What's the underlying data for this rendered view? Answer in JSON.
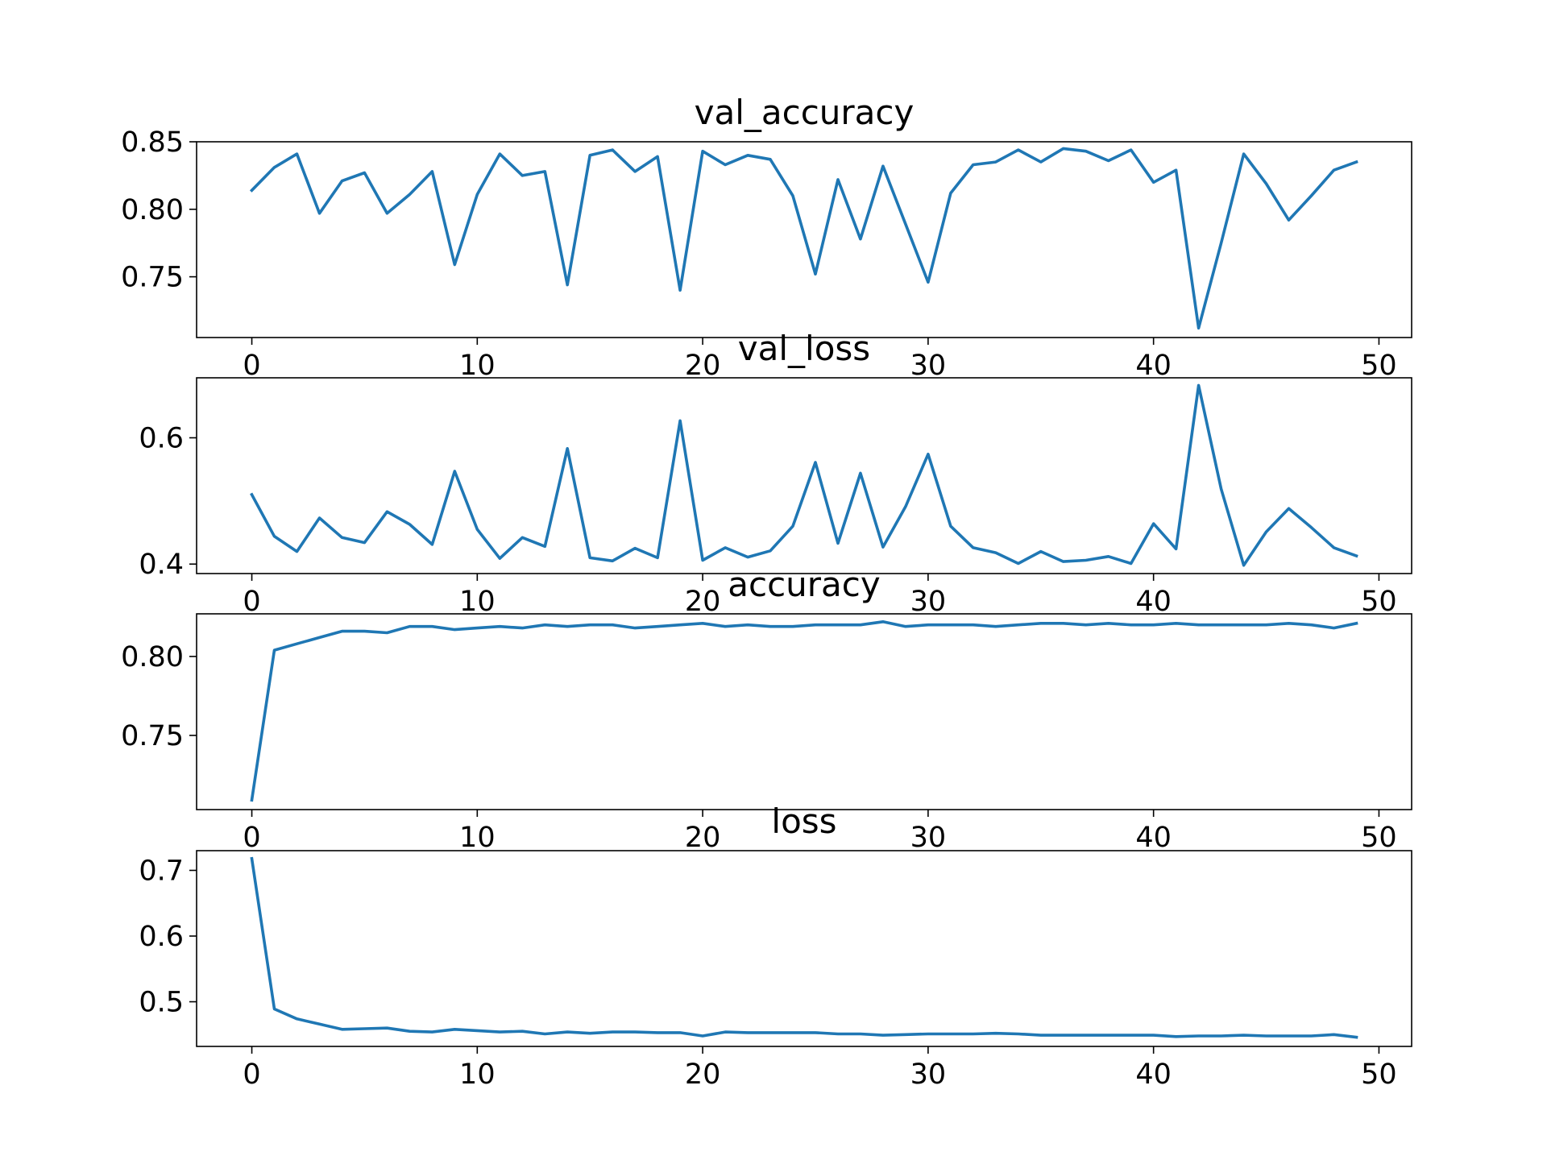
{
  "chart_data": [
    {
      "type": "line",
      "title": "val_accuracy",
      "xlabel": "",
      "ylabel": "",
      "xlim": [
        -2.45,
        51.45
      ],
      "ylim": [
        0.705,
        0.85
      ],
      "xticks": [
        "0",
        "10",
        "20",
        "30",
        "40",
        "50"
      ],
      "yticks": [
        "0.75",
        "0.80",
        "0.85"
      ],
      "x": [
        0,
        1,
        2,
        3,
        4,
        5,
        6,
        7,
        8,
        9,
        10,
        11,
        12,
        13,
        14,
        15,
        16,
        17,
        18,
        19,
        20,
        21,
        22,
        23,
        24,
        25,
        26,
        27,
        28,
        29,
        30,
        31,
        32,
        33,
        34,
        35,
        36,
        37,
        38,
        39,
        40,
        41,
        42,
        43,
        44,
        45,
        46,
        47,
        48,
        49
      ],
      "series": [
        {
          "color": "#1f77b4",
          "values": [
            0.814,
            0.831,
            0.841,
            0.797,
            0.821,
            0.827,
            0.797,
            0.811,
            0.828,
            0.759,
            0.811,
            0.841,
            0.825,
            0.828,
            0.744,
            0.84,
            0.844,
            0.828,
            0.839,
            0.74,
            0.843,
            0.833,
            0.84,
            0.837,
            0.81,
            0.752,
            0.822,
            0.778,
            0.832,
            0.789,
            0.746,
            0.812,
            0.833,
            0.835,
            0.844,
            0.835,
            0.845,
            0.843,
            0.836,
            0.844,
            0.82,
            0.829,
            0.712,
            0.775,
            0.841,
            0.819,
            0.792,
            0.81,
            0.829,
            0.835
          ]
        }
      ]
    },
    {
      "type": "line",
      "title": "val_loss",
      "xlabel": "",
      "ylabel": "",
      "xlim": [
        -2.45,
        51.45
      ],
      "ylim": [
        0.385,
        0.695
      ],
      "xticks": [
        "0",
        "10",
        "20",
        "30",
        "40",
        "50"
      ],
      "yticks": [
        "0.4",
        "0.6"
      ],
      "x": [
        0,
        1,
        2,
        3,
        4,
        5,
        6,
        7,
        8,
        9,
        10,
        11,
        12,
        13,
        14,
        15,
        16,
        17,
        18,
        19,
        20,
        21,
        22,
        23,
        24,
        25,
        26,
        27,
        28,
        29,
        30,
        31,
        32,
        33,
        34,
        35,
        36,
        37,
        38,
        39,
        40,
        41,
        42,
        43,
        44,
        45,
        46,
        47,
        48,
        49
      ],
      "series": [
        {
          "color": "#1f77b4",
          "values": [
            0.51,
            0.444,
            0.42,
            0.473,
            0.442,
            0.434,
            0.483,
            0.463,
            0.431,
            0.547,
            0.455,
            0.409,
            0.442,
            0.428,
            0.583,
            0.41,
            0.405,
            0.425,
            0.41,
            0.627,
            0.406,
            0.426,
            0.411,
            0.421,
            0.46,
            0.561,
            0.433,
            0.544,
            0.427,
            0.491,
            0.574,
            0.46,
            0.426,
            0.418,
            0.401,
            0.42,
            0.404,
            0.406,
            0.412,
            0.401,
            0.464,
            0.424,
            0.683,
            0.519,
            0.398,
            0.451,
            0.488,
            0.458,
            0.426,
            0.413
          ]
        }
      ]
    },
    {
      "type": "line",
      "title": "accuracy",
      "xlabel": "",
      "ylabel": "",
      "xlim": [
        -2.45,
        51.45
      ],
      "ylim": [
        0.703,
        0.827
      ],
      "xticks": [
        "0",
        "10",
        "20",
        "30",
        "40",
        "50"
      ],
      "yticks": [
        "0.75",
        "0.80"
      ],
      "x": [
        0,
        1,
        2,
        3,
        4,
        5,
        6,
        7,
        8,
        9,
        10,
        11,
        12,
        13,
        14,
        15,
        16,
        17,
        18,
        19,
        20,
        21,
        22,
        23,
        24,
        25,
        26,
        27,
        28,
        29,
        30,
        31,
        32,
        33,
        34,
        35,
        36,
        37,
        38,
        39,
        40,
        41,
        42,
        43,
        44,
        45,
        46,
        47,
        48,
        49
      ],
      "series": [
        {
          "color": "#1f77b4",
          "values": [
            0.709,
            0.804,
            0.808,
            0.812,
            0.816,
            0.816,
            0.815,
            0.819,
            0.819,
            0.817,
            0.818,
            0.819,
            0.818,
            0.82,
            0.819,
            0.82,
            0.82,
            0.818,
            0.819,
            0.82,
            0.821,
            0.819,
            0.82,
            0.819,
            0.819,
            0.82,
            0.82,
            0.82,
            0.822,
            0.819,
            0.82,
            0.82,
            0.82,
            0.819,
            0.82,
            0.821,
            0.821,
            0.82,
            0.821,
            0.82,
            0.82,
            0.821,
            0.82,
            0.82,
            0.82,
            0.82,
            0.821,
            0.82,
            0.818,
            0.821
          ]
        }
      ]
    },
    {
      "type": "line",
      "title": "loss",
      "xlabel": "",
      "ylabel": "",
      "xlim": [
        -2.45,
        51.45
      ],
      "ylim": [
        0.432,
        0.73
      ],
      "xticks": [
        "0",
        "10",
        "20",
        "30",
        "40",
        "50"
      ],
      "yticks": [
        "0.5",
        "0.6",
        "0.7"
      ],
      "x": [
        0,
        1,
        2,
        3,
        4,
        5,
        6,
        7,
        8,
        9,
        10,
        11,
        12,
        13,
        14,
        15,
        16,
        17,
        18,
        19,
        20,
        21,
        22,
        23,
        24,
        25,
        26,
        27,
        28,
        29,
        30,
        31,
        32,
        33,
        34,
        35,
        36,
        37,
        38,
        39,
        40,
        41,
        42,
        43,
        44,
        45,
        46,
        47,
        48,
        49
      ],
      "series": [
        {
          "color": "#1f77b4",
          "values": [
            0.718,
            0.489,
            0.474,
            0.466,
            0.458,
            0.459,
            0.46,
            0.455,
            0.454,
            0.458,
            0.456,
            0.454,
            0.455,
            0.451,
            0.454,
            0.452,
            0.454,
            0.454,
            0.453,
            0.453,
            0.448,
            0.454,
            0.453,
            0.453,
            0.453,
            0.453,
            0.451,
            0.451,
            0.449,
            0.45,
            0.451,
            0.451,
            0.451,
            0.452,
            0.451,
            0.449,
            0.449,
            0.449,
            0.449,
            0.449,
            0.449,
            0.447,
            0.448,
            0.448,
            0.449,
            0.448,
            0.448,
            0.448,
            0.45,
            0.446
          ]
        }
      ]
    }
  ]
}
